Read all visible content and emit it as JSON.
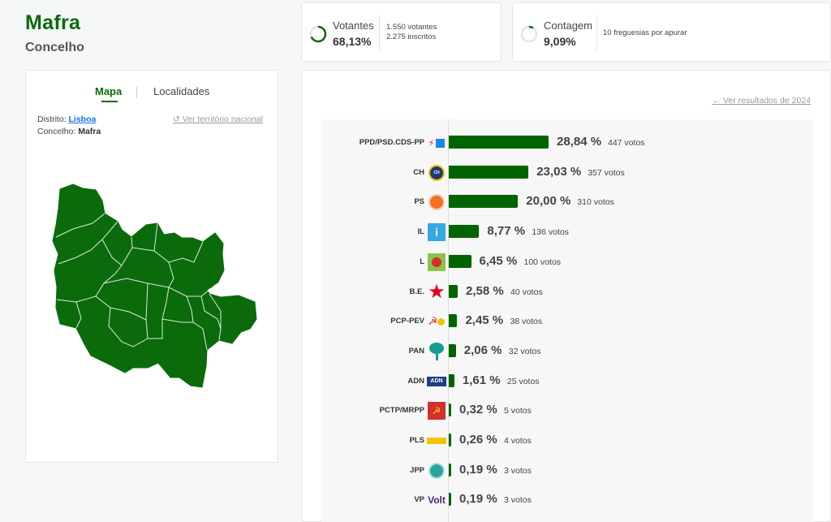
{
  "header": {
    "title": "Mafra",
    "subtitle": "Concelho"
  },
  "stats": {
    "votantes": {
      "label": "Votantes",
      "value": "68,13%",
      "fraction": 0.6813,
      "line1": "1.550 votantes",
      "line2": "2.275 inscritos"
    },
    "contagem": {
      "label": "Contagem",
      "value": "9,09%",
      "fraction": 0.0909,
      "line1": "10 freguesias por apurar"
    }
  },
  "map_panel": {
    "tabs": [
      "Mapa",
      "Localidades"
    ],
    "distrito_label": "Distrito:",
    "distrito_value": "Lisboa",
    "concelho_label": "Concelho:",
    "concelho_value": "Mafra",
    "ver_territorio": "Ver território nacional"
  },
  "results": {
    "ver_resultados": "Ver resultados de 2024",
    "accent_color": "#006400",
    "parties": [
      {
        "name": "PPD/PSD.CDS-PP",
        "pct_label": "28,84 %",
        "pct": 28.84,
        "votes_label": "447 votos",
        "logo": "ad-logo"
      },
      {
        "name": "CH",
        "pct_label": "23,03 %",
        "pct": 23.03,
        "votes_label": "357 votos",
        "logo": "chega-logo"
      },
      {
        "name": "PS",
        "pct_label": "20,00 %",
        "pct": 20.0,
        "votes_label": "310 votos",
        "logo": "ps-fist-logo"
      },
      {
        "name": "IL",
        "pct_label": "8,77 %",
        "pct": 8.77,
        "votes_label": "136 votos",
        "logo": "il-logo"
      },
      {
        "name": "L",
        "pct_label": "6,45 %",
        "pct": 6.45,
        "votes_label": "100 votos",
        "logo": "livre-poppy-logo"
      },
      {
        "name": "B.E.",
        "pct_label": "2,58 %",
        "pct": 2.58,
        "votes_label": "40 votos",
        "logo": "be-star-logo"
      },
      {
        "name": "PCP-PEV",
        "pct_label": "2,45 %",
        "pct": 2.45,
        "votes_label": "38 votos",
        "logo": "cdu-logo"
      },
      {
        "name": "PAN",
        "pct_label": "2,06 %",
        "pct": 2.06,
        "votes_label": "32 votos",
        "logo": "pan-tree-logo"
      },
      {
        "name": "ADN",
        "pct_label": "1,61 %",
        "pct": 1.61,
        "votes_label": "25 votos",
        "logo": "adn-logo"
      },
      {
        "name": "PCTP/MRPP",
        "pct_label": "0,32 %",
        "pct": 0.32,
        "votes_label": "5 votos",
        "logo": "mrpp-logo"
      },
      {
        "name": "PLS",
        "pct_label": "0,26 %",
        "pct": 0.26,
        "votes_label": "4 votos",
        "logo": "pls-logo"
      },
      {
        "name": "JPP",
        "pct_label": "0,19 %",
        "pct": 0.19,
        "votes_label": "3 votos",
        "logo": "jpp-logo"
      },
      {
        "name": "VP",
        "pct_label": "0,19 %",
        "pct": 0.19,
        "votes_label": "3 votos",
        "logo": "volt-logo",
        "logo_text": "Volt"
      }
    ]
  }
}
